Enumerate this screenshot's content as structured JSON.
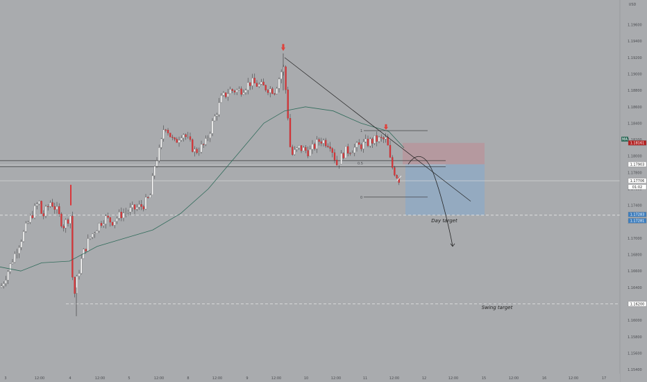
{
  "chart_data": {
    "type": "candlestick",
    "symbol_header": [
      "USD"
    ],
    "ylim": [
      1.1535,
      1.1985
    ],
    "x_ticks": [
      "3",
      "12:00",
      "4",
      "12:00",
      "5",
      "12:00",
      "8",
      "12:00",
      "9",
      "12:00",
      "10",
      "12:00",
      "11",
      "12:00",
      "12",
      "12:00",
      "15",
      "12:00",
      "16",
      "12:00",
      "17"
    ],
    "y_ticks": [
      "1.19600",
      "1.19400",
      "1.19200",
      "1.19000",
      "1.18800",
      "1.18600",
      "1.18400",
      "1.18200",
      "1.18000",
      "1.17800",
      "1.17600",
      "1.17400",
      "1.17200",
      "1.17000",
      "1.16800",
      "1.16600",
      "1.16400",
      "1.16200",
      "1.16000",
      "1.15800",
      "1.15600",
      "1.15400"
    ],
    "price_badges": [
      {
        "label": "MA",
        "value": "1.18161",
        "color": "#b22222",
        "kind": "ma"
      },
      {
        "label": "",
        "value": "1.17903",
        "color": "#ffffff",
        "kind": "level"
      },
      {
        "label": "",
        "value": "1.17706",
        "color": "#ffffff",
        "kind": "current"
      },
      {
        "label": "",
        "value": "01:02",
        "color": "#ffffff",
        "kind": "countdown"
      },
      {
        "label": "",
        "value": "1.17283",
        "color": "#3f7fbf",
        "kind": "target"
      },
      {
        "label": "",
        "value": "1.17281",
        "color": "#3f7fbf",
        "kind": "target"
      },
      {
        "label": "",
        "value": "1.16200",
        "color": "#ffffff",
        "kind": "swing"
      }
    ],
    "levels": {
      "support_top": 1.1792,
      "support_bottom": 1.1788,
      "current": 1.177,
      "day_target": 1.1728,
      "swing_target": 1.162
    },
    "fib": {
      "one_label": "1",
      "zero_label": "0",
      "mid_label": "0.5",
      "one_price": 1.1831,
      "zero_price": 1.175
    },
    "annotations": {
      "day_target": "Day target",
      "swing_target": "Swing target"
    },
    "position": {
      "entry": 1.179,
      "stop": 1.1816,
      "target": 1.1728
    },
    "colors": {
      "up": "#ffffff",
      "down": "#d9373b",
      "ma": "#2f6b5a",
      "stop_zone": "#c08a93",
      "target_zone": "#8ea9c6",
      "arrow": "#e0413a"
    }
  }
}
